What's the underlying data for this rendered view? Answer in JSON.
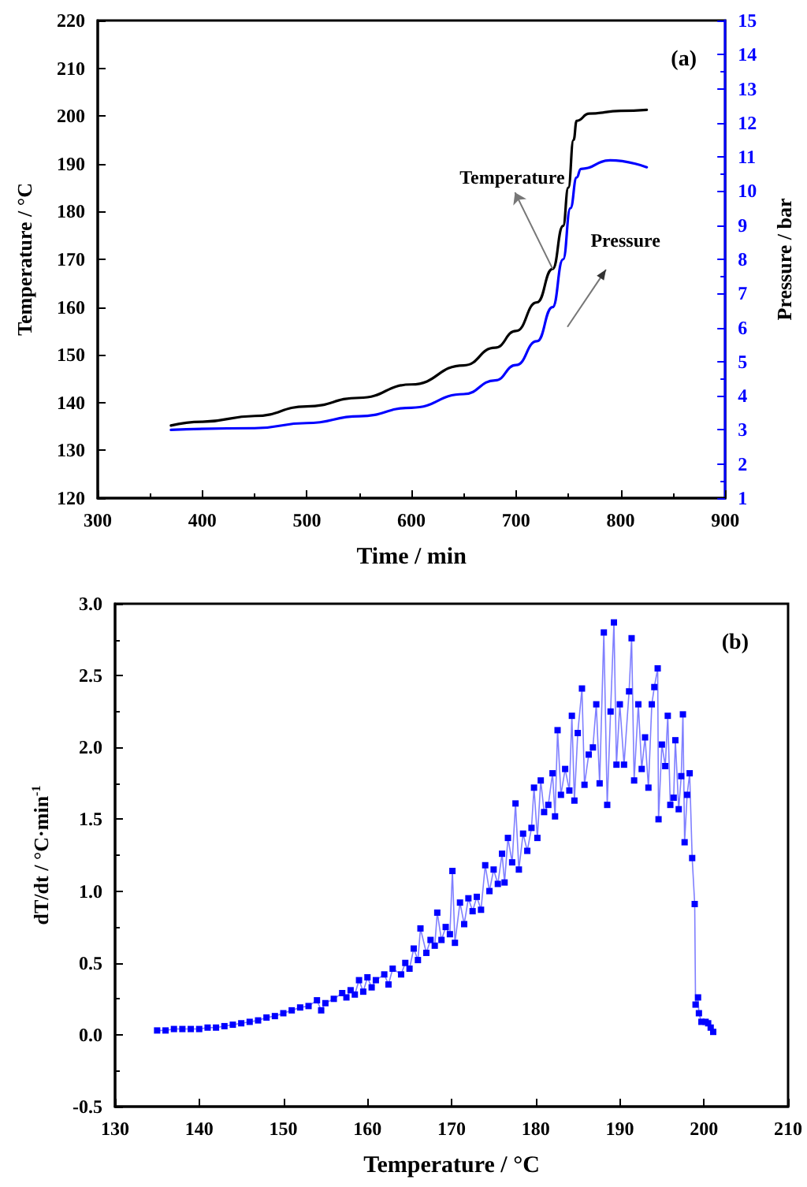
{
  "chart_data": [
    {
      "type": "line",
      "xlabel": "Time / min",
      "ylabel": "Temperature / °C",
      "y2label": "Pressure / bar",
      "xlim": [
        300,
        900
      ],
      "xticks": [
        300,
        400,
        500,
        600,
        700,
        800,
        900
      ],
      "ylim": [
        120,
        220
      ],
      "yticks": [
        120,
        130,
        140,
        150,
        160,
        170,
        180,
        190,
        200,
        210,
        220
      ],
      "y2lim": [
        1,
        15
      ],
      "y2ticks": [
        1,
        2,
        3,
        4,
        5,
        6,
        7,
        8,
        9,
        10,
        11,
        12,
        13,
        14,
        15
      ],
      "grid": false,
      "marker": "none",
      "line_style": "solid",
      "annotations": [
        "(a)",
        {
          "text": "Temperature",
          "x": 735,
          "y": 168
        },
        "Pressure"
      ],
      "series": [
        {
          "color": "#000000",
          "x": [
            370,
            400,
            450,
            500,
            550,
            600,
            650,
            680,
            700,
            720,
            735,
            745,
            750,
            755,
            758,
            770,
            800,
            825
          ],
          "values": [
            135.2,
            136,
            137.2,
            139.2,
            141,
            143.8,
            147.8,
            151.5,
            155,
            161,
            168,
            177,
            185,
            195,
            199,
            200.5,
            201.1,
            201.3
          ]
        },
        {
          "color": "#0000ff",
          "axis": "y2",
          "x": [
            370,
            450,
            500,
            550,
            600,
            650,
            680,
            700,
            720,
            735,
            745,
            752,
            758,
            762,
            790,
            825
          ],
          "values": [
            3.0,
            3.05,
            3.2,
            3.4,
            3.65,
            4.05,
            4.45,
            4.9,
            5.6,
            6.6,
            8,
            9.5,
            10.4,
            10.65,
            10.9,
            10.7
          ]
        }
      ]
    },
    {
      "type": "line",
      "xlabel": "Temperature / °C",
      "ylabel": "dT/dt / °C·min$^{-1}$",
      "xlim": [
        130,
        210
      ],
      "xticks": [
        130,
        140,
        150,
        160,
        170,
        180,
        190,
        200,
        210
      ],
      "ylim": [
        -0.5,
        3.0
      ],
      "yticks": [
        -0.5,
        {
          "value": 0,
          "label": "0.0"
        },
        0.5,
        {
          "value": 1,
          "label": "1.0"
        },
        1.5,
        {
          "value": 2,
          "label": "2.0"
        },
        2.5,
        {
          "value": 3,
          "label": "3.0"
        }
      ],
      "grid": false,
      "marker": "square",
      "line_style": "solid",
      "annotations": [
        "(b)"
      ],
      "series": [
        {
          "color": "#0000ff",
          "x": [
            135,
            136,
            137,
            138,
            139,
            140,
            141,
            142,
            143,
            144,
            145,
            146,
            147,
            148,
            149,
            150,
            151,
            152,
            153,
            154,
            154.5,
            155,
            156,
            157,
            157.5,
            158,
            158.5,
            159,
            159.5,
            160,
            160.5,
            161,
            162,
            162.5,
            163,
            164,
            164.5,
            165,
            165.5,
            166,
            166.3,
            167,
            167.5,
            168,
            168.3,
            168.8,
            169.3,
            169.8,
            170.1,
            170.4,
            171,
            171.5,
            172,
            172.5,
            173,
            173.5,
            174,
            174.5,
            175,
            175.5,
            176,
            176.3,
            176.7,
            177.2,
            177.6,
            178,
            178.5,
            179,
            179.5,
            179.8,
            180.2,
            180.6,
            181,
            181.5,
            182,
            182.3,
            182.6,
            183,
            183.5,
            184,
            184.3,
            184.6,
            185,
            185.5,
            185.8,
            186.3,
            186.8,
            187.2,
            187.6,
            188.1,
            188.5,
            188.9,
            189.3,
            189.6,
            190,
            190.5,
            191.1,
            191.4,
            191.7,
            192.2,
            192.6,
            193,
            193.4,
            193.8,
            194.1,
            194.5,
            194.6,
            195,
            195.4,
            195.7,
            196,
            196.4,
            196.6,
            197,
            197.3,
            197.5,
            197.7,
            198,
            198.3,
            198.6,
            198.9,
            199,
            199.3,
            199.4,
            199.7,
            200.2,
            200.5,
            200.8,
            201.1
          ],
          "values": [
            0.03,
            0.03,
            0.04,
            0.04,
            0.04,
            0.04,
            0.05,
            0.05,
            0.06,
            0.07,
            0.08,
            0.09,
            0.1,
            0.12,
            0.13,
            0.15,
            0.17,
            0.19,
            0.2,
            0.24,
            0.17,
            0.22,
            0.25,
            0.29,
            0.26,
            0.31,
            0.28,
            0.38,
            0.3,
            0.4,
            0.33,
            0.38,
            0.42,
            0.35,
            0.46,
            0.42,
            0.5,
            0.46,
            0.6,
            0.52,
            0.74,
            0.57,
            0.66,
            0.62,
            0.85,
            0.66,
            0.75,
            0.7,
            1.14,
            0.64,
            0.92,
            0.77,
            0.95,
            0.86,
            0.96,
            0.87,
            1.18,
            1.0,
            1.15,
            1.05,
            1.26,
            1.06,
            1.37,
            1.2,
            1.61,
            1.15,
            1.4,
            1.28,
            1.44,
            1.72,
            1.37,
            1.77,
            1.55,
            1.6,
            1.82,
            1.52,
            2.12,
            1.67,
            1.85,
            1.7,
            2.22,
            1.63,
            2.1,
            2.41,
            1.74,
            1.95,
            2.0,
            2.3,
            1.75,
            2.8,
            1.6,
            2.25,
            2.87,
            1.88,
            2.3,
            1.88,
            2.39,
            2.76,
            1.77,
            2.3,
            1.85,
            2.07,
            1.72,
            2.3,
            2.42,
            2.55,
            1.5,
            2.02,
            1.87,
            2.22,
            1.6,
            1.65,
            2.05,
            1.57,
            1.8,
            2.23,
            1.34,
            1.67,
            1.82,
            1.23,
            0.91,
            0.21,
            0.26,
            0.15,
            0.09,
            0.09,
            0.08,
            0.05,
            0.02
          ]
        }
      ]
    }
  ]
}
